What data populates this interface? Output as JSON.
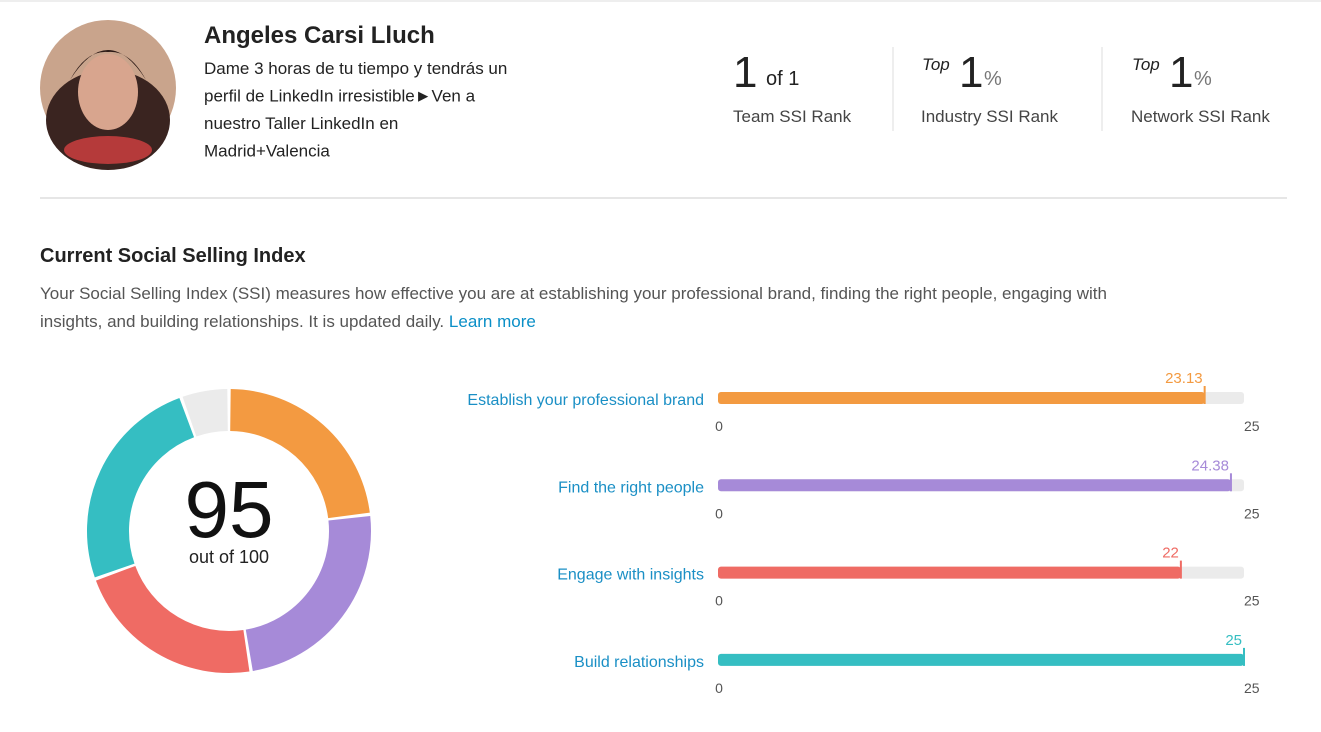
{
  "profile": {
    "name": "Angeles Carsi Lluch",
    "bio": [
      "Dame 3 horas de tu tiempo y tendrás un",
      "perfil de LinkedIn irresistible►Ven a",
      "nuestro Taller LinkedIn en",
      "Madrid+Valencia"
    ]
  },
  "ranks": [
    {
      "value": 1,
      "suffix": "of 1",
      "label": "Team SSI Rank"
    },
    {
      "prefix": "Top",
      "value": 1,
      "suffix": "%",
      "label": "Industry SSI Rank"
    },
    {
      "prefix": "Top",
      "value": 1,
      "suffix": "%",
      "label": "Network SSI Rank"
    }
  ],
  "section": {
    "title": "Current Social Selling Index",
    "description": [
      "Your Social Selling Index (SSI) measures how effective you are at establishing your professional brand, finding the right people, engaging with",
      "insights, and building relationships. It is updated daily."
    ],
    "link": "Learn more"
  },
  "chart_data": [
    {
      "type": "donut",
      "total": 95,
      "total_label": "out of 100",
      "ylim": [
        0,
        100
      ],
      "categories": [
        "Establish your professional brand",
        "Find the right people",
        "Engage with insights",
        "Build relationships"
      ],
      "values": [
        23.13,
        24.38,
        22,
        25
      ],
      "colors": [
        "#f39a41",
        "#a68ad8",
        "#ef6b64",
        "#35bec2"
      ],
      "rest_color": "#ebebeb"
    },
    {
      "type": "hbar",
      "categories": [
        "Establish your professional brand",
        "Find the right people",
        "Engage with insights",
        "Build relationships"
      ],
      "values": [
        23.13,
        24.38,
        22,
        25
      ],
      "colors": [
        "#f39a41",
        "#a68ad8",
        "#ef6b64",
        "#35bec2"
      ],
      "track_color": "#ebebeb",
      "xlim": [
        0,
        25
      ],
      "xticks": [
        0,
        25
      ]
    }
  ]
}
